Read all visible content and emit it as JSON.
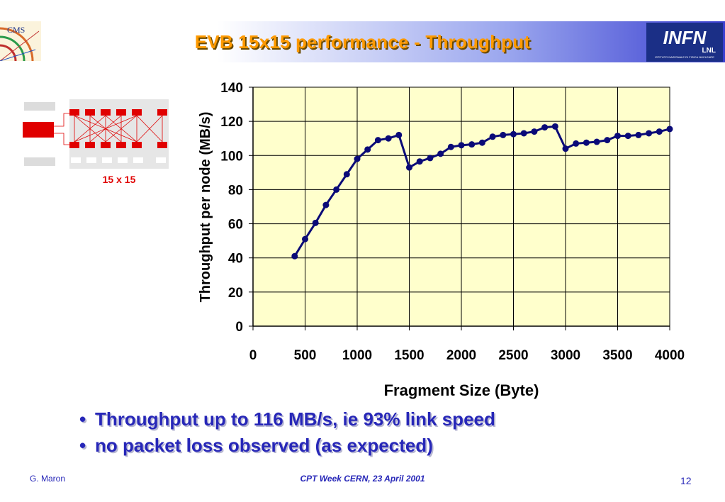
{
  "slide": {
    "title": "EVB 15x15 performance - Throughput",
    "cms_logo_text": "CMS",
    "infn_logo_text": "INFN",
    "infn_sub": "LNL",
    "infn_small": "ISTITUTO NAZIONALE DI FISICA NUCLEARE",
    "diagram_caption": "15 x 15",
    "bullets": [
      "Throughput  up to 116 MB/s, ie 93% link speed",
      "no packet loss observed (as expected)"
    ],
    "footer_left": "G. Maron",
    "footer_center": "CPT  Week    CERN, 23 April 2001",
    "footer_page": "12"
  },
  "colors": {
    "title": "#ff9a00",
    "bullet_text": "#2727b8",
    "plot_background": "#ffffcc",
    "series_line": "#0a0a78",
    "diagram_red": "#e00000"
  },
  "chart_data": {
    "type": "line",
    "xlabel": "Fragment Size (Byte)",
    "ylabel": "Throughput per node (MB/s)",
    "xlim": [
      0,
      4000
    ],
    "ylim": [
      0,
      140
    ],
    "xticks": [
      0,
      500,
      1000,
      1500,
      2000,
      2500,
      3000,
      3500,
      4000
    ],
    "yticks": [
      0,
      20,
      40,
      60,
      80,
      100,
      120,
      140
    ],
    "grid": "vertical and horizontal",
    "legend": "none",
    "series": [
      {
        "x": [
          400,
          500,
          600,
          700,
          800,
          900,
          1000,
          1100,
          1200,
          1300,
          1400,
          1500,
          1600,
          1700,
          1800,
          1900,
          2000,
          2100,
          2200,
          2300,
          2400,
          2500,
          2600,
          2700,
          2800,
          2900,
          3000,
          3100,
          3200,
          3300,
          3400,
          3500,
          3600,
          3700,
          3800,
          3900,
          4000
        ],
        "y": [
          41,
          51,
          60.5,
          71,
          80,
          89,
          98,
          103.5,
          109,
          110,
          112,
          93,
          96.5,
          98.5,
          101,
          105,
          106,
          106.5,
          107.5,
          111,
          112,
          112.5,
          113,
          114,
          116.5,
          117,
          104,
          107,
          107.5,
          108,
          109,
          111.5,
          111.5,
          112,
          113,
          114,
          115.5
        ]
      }
    ]
  }
}
